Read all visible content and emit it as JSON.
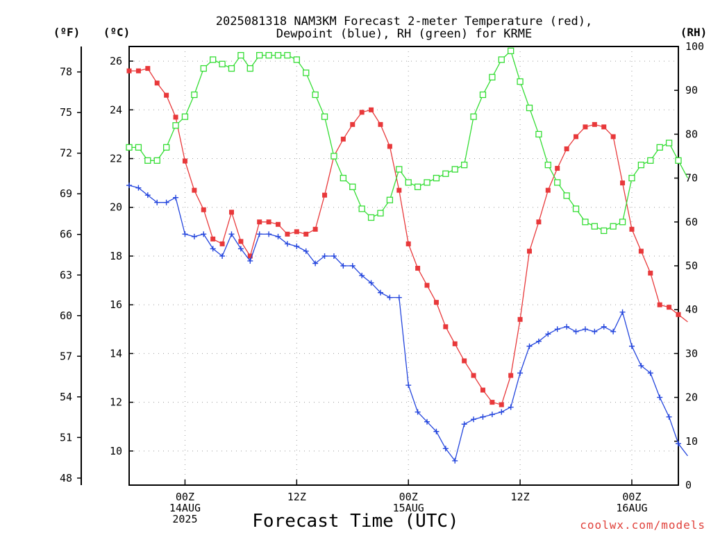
{
  "page": {
    "title_line1": "2025081318 NAM3KM Forecast 2-meter Temperature (red),",
    "title_line2": "Dewpoint (blue), RH (green) for KRME",
    "unit_f": "(ºF)",
    "unit_c": "(ºC)",
    "unit_rh": "(RH)",
    "xlabel": "Forecast Time (UTC)",
    "credit": "coolwx.com/models"
  },
  "chart_data": {
    "type": "line",
    "title": "2025081318 NAM3KM Forecast 2-meter Temperature (red), Dewpoint (blue), RH (green) for KRME",
    "xlabel": "Forecast Time (UTC)",
    "ylabel_left_inner": "(ºC)",
    "ylabel_left_outer": "(ºF)",
    "ylabel_right": "(RH)",
    "x_units": "hours since 2025-08-13 18Z",
    "xlim": [
      0,
      59
    ],
    "ylim_c": [
      8.6,
      26.6
    ],
    "ylim_rh": [
      0,
      100
    ],
    "x_ticks": [
      {
        "x": 6,
        "lines": [
          "00Z",
          "14AUG",
          "2025"
        ]
      },
      {
        "x": 18,
        "lines": [
          "12Z"
        ]
      },
      {
        "x": 30,
        "lines": [
          "00Z",
          "15AUG"
        ]
      },
      {
        "x": 42,
        "lines": [
          "12Z"
        ]
      },
      {
        "x": 54,
        "lines": [
          "00Z",
          "16AUG"
        ]
      }
    ],
    "c_ticks": [
      "10",
      "12",
      "14",
      "16",
      "18",
      "20",
      "22",
      "24",
      "26"
    ],
    "f_ticks": [
      "48",
      "51",
      "54",
      "57",
      "60",
      "63",
      "66",
      "69",
      "72",
      "75",
      "78"
    ],
    "rh_ticks": [
      "0",
      "10",
      "20",
      "30",
      "40",
      "50",
      "60",
      "70",
      "80",
      "90",
      "100"
    ],
    "grid": true,
    "series": [
      {
        "name": "Temperature (red)",
        "color": "#e8383a",
        "marker": "filled-square",
        "axis": "c",
        "values": [
          25.6,
          25.6,
          25.7,
          25.1,
          24.6,
          23.7,
          21.9,
          20.7,
          19.9,
          18.7,
          18.5,
          19.8,
          18.6,
          18.0,
          19.4,
          19.4,
          19.3,
          18.9,
          19.0,
          18.9,
          19.1,
          20.5,
          22.1,
          22.8,
          23.4,
          23.9,
          24.0,
          23.4,
          22.5,
          20.7,
          18.5,
          17.5,
          16.8,
          16.1,
          15.1,
          14.4,
          13.7,
          13.1,
          12.5,
          12.0,
          11.9,
          13.1,
          15.4,
          18.2,
          19.4,
          20.7,
          21.6,
          22.4,
          22.9,
          23.3,
          23.4,
          23.3,
          22.9,
          21.0,
          19.1,
          18.2,
          17.3,
          16.0,
          15.9,
          15.6,
          15.3
        ]
      },
      {
        "name": "Dewpoint (blue)",
        "color": "#2244dd",
        "marker": "plus",
        "axis": "c",
        "values": [
          20.9,
          20.8,
          20.5,
          20.2,
          20.2,
          20.4,
          18.9,
          18.8,
          18.9,
          18.3,
          18.0,
          18.9,
          18.3,
          17.8,
          18.9,
          18.9,
          18.8,
          18.5,
          18.4,
          18.2,
          17.7,
          18.0,
          18.0,
          17.6,
          17.6,
          17.2,
          16.9,
          16.5,
          16.3,
          16.3,
          12.7,
          11.6,
          11.2,
          10.8,
          10.1,
          9.6,
          11.1,
          11.3,
          11.4,
          11.5,
          11.6,
          11.8,
          13.2,
          14.3,
          14.5,
          14.8,
          15.0,
          15.1,
          14.9,
          15.0,
          14.9,
          15.1,
          14.9,
          15.7,
          14.3,
          13.5,
          13.2,
          12.2,
          11.4,
          10.3,
          9.8
        ]
      },
      {
        "name": "RH (green)",
        "color": "#33dd33",
        "marker": "open-square",
        "axis": "rh",
        "values": [
          77,
          77,
          74,
          74,
          77,
          82,
          84,
          89,
          95,
          97,
          96,
          95,
          98,
          95,
          98,
          98,
          98,
          98,
          97,
          94,
          89,
          84,
          75,
          70,
          68,
          63,
          61,
          62,
          65,
          72,
          69,
          68,
          69,
          70,
          71,
          72,
          73,
          84,
          89,
          93,
          97,
          99,
          92,
          86,
          80,
          73,
          69,
          66,
          63,
          60,
          59,
          58,
          59,
          60,
          70,
          73,
          74,
          77,
          78,
          74,
          70
        ]
      }
    ]
  }
}
